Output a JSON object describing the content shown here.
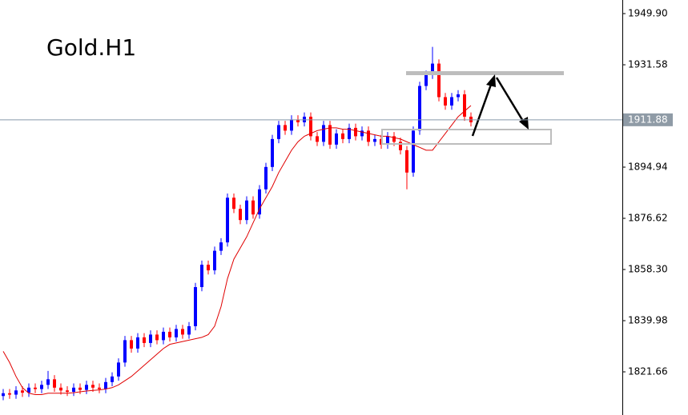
{
  "chart_data": {
    "type": "candlestick",
    "title": "Gold.H1",
    "up_color": "#0000ff",
    "down_color": "#ff0000",
    "open": [
      1813,
      1814,
      1813.5,
      1815,
      1814.2,
      1816,
      1815.5,
      1817,
      1819,
      1816,
      1815,
      1814.5,
      1816,
      1815.2,
      1817,
      1816,
      1815.5,
      1818,
      1820,
      1825,
      1833,
      1830,
      1834,
      1832,
      1835,
      1833,
      1836,
      1834,
      1837,
      1835,
      1838,
      1852,
      1860,
      1858,
      1865,
      1868,
      1884,
      1880,
      1876,
      1883,
      1878,
      1887,
      1895,
      1905,
      1910,
      1908,
      1912,
      1911,
      1913,
      1906,
      1904,
      1910,
      1903,
      1907,
      1905,
      1909,
      1906,
      1908,
      1904,
      1905,
      1903,
      1906,
      1904,
      1901,
      1893,
      1908,
      1924,
      1928,
      1932,
      1920,
      1917,
      1920,
      1921,
      1913
    ],
    "high": [
      1815.5,
      1815.5,
      1816.5,
      1816.5,
      1817.5,
      1817.5,
      1818.5,
      1822,
      1820.5,
      1817.5,
      1816.5,
      1817.5,
      1817.5,
      1818.5,
      1818.5,
      1817.5,
      1819.5,
      1821.5,
      1826.5,
      1834.5,
      1834.5,
      1835.5,
      1835.5,
      1836.5,
      1836.5,
      1837.5,
      1837.5,
      1838.5,
      1838.5,
      1839.5,
      1853.5,
      1861.5,
      1861.5,
      1866.5,
      1869.5,
      1885.5,
      1885.5,
      1881.5,
      1884.5,
      1884.5,
      1888.5,
      1896.5,
      1906.5,
      1911.5,
      1911.5,
      1913.5,
      1913.5,
      1914.5,
      1914.5,
      1907.5,
      1911.5,
      1911.5,
      1908.5,
      1908.5,
      1910.5,
      1910.5,
      1909.5,
      1909.5,
      1906.5,
      1906.5,
      1907.5,
      1907.5,
      1905.5,
      1902.5,
      1909.5,
      1925.5,
      1929.5,
      1938,
      1933.5,
      1921.5,
      1921.5,
      1922.5,
      1922.5,
      1914.5
    ],
    "low": [
      1811.5,
      1812,
      1812,
      1812.7,
      1812.7,
      1814,
      1814,
      1815.5,
      1814.5,
      1813.5,
      1813,
      1813,
      1813.7,
      1813.7,
      1814.5,
      1814,
      1814,
      1816.5,
      1818.5,
      1823.5,
      1828.5,
      1828.5,
      1830.5,
      1830.5,
      1831.5,
      1831.5,
      1832.5,
      1832.5,
      1833.5,
      1833.5,
      1836.5,
      1850.5,
      1856.5,
      1856.5,
      1863.5,
      1866.5,
      1878.5,
      1874.5,
      1874.5,
      1876.5,
      1876.5,
      1885.5,
      1893.5,
      1903.5,
      1906.5,
      1906.5,
      1909.5,
      1909.5,
      1904.5,
      1902.5,
      1902.5,
      1901.5,
      1901.5,
      1903.5,
      1903.5,
      1904.5,
      1904.5,
      1902.5,
      1902.5,
      1901.5,
      1901.5,
      1902.5,
      1899.5,
      1887,
      1891.5,
      1906.5,
      1922.5,
      1926.5,
      1918.5,
      1915.5,
      1915.5,
      1918.5,
      1911.5,
      1909.5
    ],
    "close": [
      1814,
      1813.5,
      1815,
      1814.2,
      1816,
      1815.5,
      1817,
      1819,
      1816,
      1815,
      1814.5,
      1816,
      1815.2,
      1817,
      1816,
      1815.5,
      1818,
      1820,
      1825,
      1833,
      1830,
      1834,
      1832,
      1835,
      1833,
      1836,
      1834,
      1837,
      1835,
      1838,
      1852,
      1860,
      1858,
      1865,
      1868,
      1884,
      1880,
      1876,
      1883,
      1878,
      1887,
      1895,
      1905,
      1910,
      1908,
      1912,
      1911,
      1913,
      1906,
      1904,
      1910,
      1903,
      1907,
      1905,
      1909,
      1906,
      1908,
      1904,
      1905,
      1903,
      1906,
      1904,
      1901,
      1893,
      1908,
      1924,
      1928,
      1932,
      1920,
      1917,
      1920,
      1921,
      1913,
      1911
    ],
    "moving_average": {
      "color": "#e00000",
      "values": [
        1829,
        1825,
        1820,
        1816,
        1814,
        1813.5,
        1813.5,
        1814,
        1814,
        1814,
        1814,
        1814.2,
        1814.5,
        1814.8,
        1815,
        1815.2,
        1815.5,
        1816,
        1817,
        1818.5,
        1820,
        1822,
        1824,
        1826,
        1828,
        1830,
        1831.5,
        1832,
        1832.5,
        1833,
        1833.5,
        1834,
        1835,
        1838,
        1845,
        1855,
        1862,
        1866,
        1870,
        1875,
        1880,
        1884,
        1888,
        1893,
        1897,
        1901,
        1904,
        1906,
        1907,
        1908,
        1908.5,
        1909,
        1909,
        1908.5,
        1908.5,
        1908,
        1907.5,
        1907,
        1906.5,
        1906,
        1906,
        1905.5,
        1905,
        1904,
        1903,
        1902,
        1901,
        1901,
        1904,
        1907,
        1910,
        1913,
        1915,
        1917
      ]
    },
    "current_price": {
      "value": 1911.88,
      "label": "1911.88"
    },
    "ylim": [
      1806.21,
      1954.77
    ],
    "yticks": [
      {
        "value": 1949.9,
        "label": "1949.90"
      },
      {
        "value": 1931.58,
        "label": "1931.58"
      },
      {
        "value": 1894.94,
        "label": "1894.94"
      },
      {
        "value": 1876.62,
        "label": "1876.62"
      },
      {
        "value": 1858.3,
        "label": "1858.30"
      },
      {
        "value": 1839.98,
        "label": "1839.98"
      },
      {
        "value": 1821.66,
        "label": "1821.66"
      }
    ]
  }
}
